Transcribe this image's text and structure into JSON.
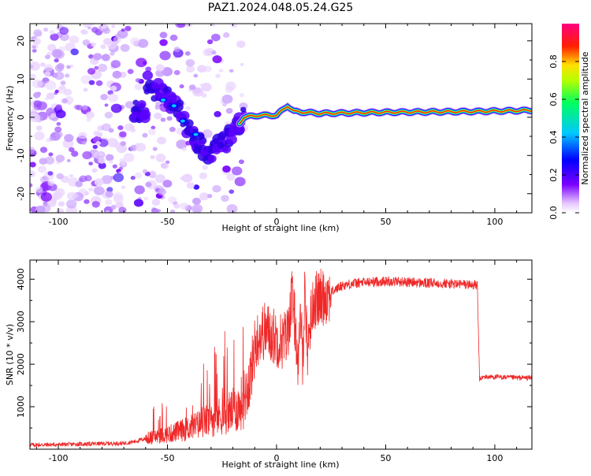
{
  "figure": {
    "title": "PAZ1.2024.048.05.24.G25"
  },
  "chart_data": [
    {
      "type": "heatmap",
      "title": "PAZ1.2024.048.05.24.G25",
      "xlabel": "Height of straight line (km)",
      "ylabel": "Frequency (Hz)",
      "xlim": [
        -113,
        117
      ],
      "ylim": [
        -25,
        24.5
      ],
      "x_ticks": [
        -100,
        -50,
        0,
        50,
        100
      ],
      "y_ticks": [
        -20,
        -10,
        0,
        10,
        20
      ],
      "colorbar": {
        "label": "Normalized spectral amplitude",
        "range": [
          0,
          1
        ],
        "ticks": [
          0.0,
          0.2,
          0.4,
          0.6,
          0.8
        ],
        "colormap": [
          "#ffffff",
          "#7a00ff",
          "#0000ff",
          "#00c8ff",
          "#00ff60",
          "#b4ff00",
          "#ffe000",
          "#ff2000",
          "#ff0080"
        ]
      },
      "ridge_frequency": [
        {
          "x": -60,
          "y": 9
        },
        {
          "x": -50,
          "y": 5
        },
        {
          "x": -45,
          "y": 1.5
        },
        {
          "x": -40,
          "y": -4
        },
        {
          "x": -30,
          "y": -10
        },
        {
          "x": -20,
          "y": -4
        },
        {
          "x": -15,
          "y": 0
        },
        {
          "x": -8,
          "y": 0.5
        },
        {
          "x": 0,
          "y": 0.5
        },
        {
          "x": 5,
          "y": 3
        },
        {
          "x": 8,
          "y": 1.5
        },
        {
          "x": 20,
          "y": 1
        },
        {
          "x": 50,
          "y": 1.3
        },
        {
          "x": 90,
          "y": 1.5
        },
        {
          "x": 117,
          "y": 1.8
        }
      ],
      "grid": false
    },
    {
      "type": "line",
      "xlabel": "Height of straight line (km)",
      "ylabel": "SNR (10 * v/v)",
      "xlim": [
        -113,
        117
      ],
      "ylim": [
        0,
        4450
      ],
      "x_ticks": [
        -100,
        -50,
        0,
        50,
        100
      ],
      "y_ticks": [
        1000,
        2000,
        3000,
        4000
      ],
      "color": "#f02828",
      "series": [
        {
          "x": [
            -113,
            -100,
            -90,
            -80,
            -70,
            -65,
            -60,
            -55,
            -50,
            -45,
            -40,
            -35,
            -30,
            -25,
            -20,
            -17,
            -15,
            -12,
            -10,
            -8,
            -5,
            -2,
            0,
            3,
            5,
            7,
            9,
            10,
            11,
            12,
            13,
            14,
            15,
            17,
            20,
            25,
            30,
            35,
            40,
            45,
            50,
            55,
            60,
            65,
            70,
            75,
            80,
            85,
            90,
            92,
            93,
            95,
            100,
            105,
            110,
            117
          ],
          "y": [
            100,
            110,
            120,
            130,
            140,
            180,
            250,
            300,
            350,
            420,
            500,
            600,
            700,
            800,
            900,
            1000,
            1200,
            1700,
            2400,
            2700,
            2800,
            2700,
            2600,
            2550,
            2700,
            3600,
            2700,
            1800,
            3200,
            2100,
            3900,
            2300,
            2800,
            3500,
            3550,
            3700,
            3850,
            3900,
            3920,
            3940,
            3950,
            3950,
            3930,
            3920,
            3900,
            3910,
            3890,
            3880,
            3870,
            3850,
            1650,
            1700,
            1700,
            1690,
            1680,
            1680
          ]
        }
      ],
      "grid": false
    }
  ]
}
